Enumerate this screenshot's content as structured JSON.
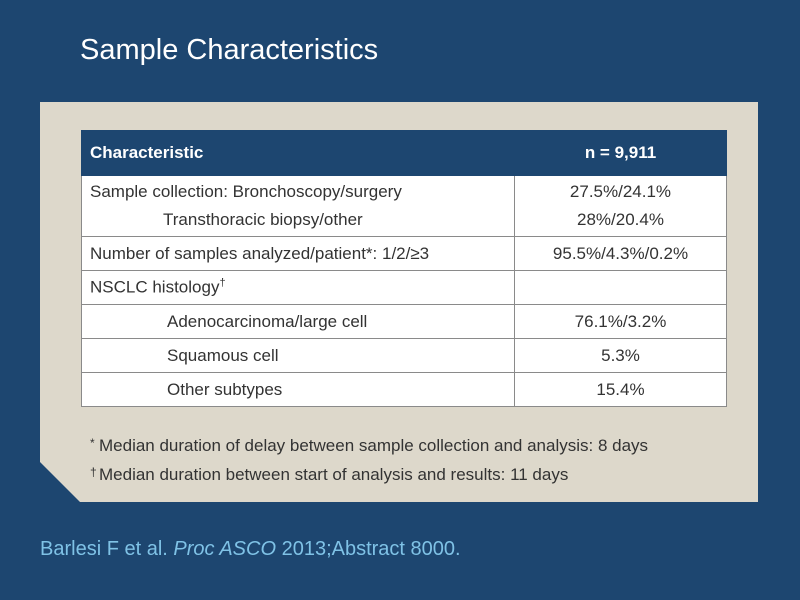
{
  "title": "Sample Characteristics",
  "table": {
    "header": {
      "characteristic": "Characteristic",
      "value": "n = 9,911"
    },
    "rows": {
      "sample_collection": {
        "label_line1": "Sample collection: Bronchoscopy/surgery",
        "label_line2": "Transthoracic biopsy/other",
        "value_line1": "27.5%/24.1%",
        "value_line2": "28%/20.4%"
      },
      "samples_analyzed": {
        "label": "Number of samples analyzed/patient*: 1/2/≥3",
        "value": "95.5%/4.3%/0.2%"
      },
      "histology": {
        "label": "NSCLC histology",
        "label_sup": "†",
        "value": ""
      },
      "adeno": {
        "label": "Adenocarcinoma/large cell",
        "value": "76.1%/3.2%"
      },
      "squamous": {
        "label": "Squamous cell",
        "value": "5.3%"
      },
      "other": {
        "label": "Other subtypes",
        "value": "15.4%"
      }
    }
  },
  "footnotes": [
    {
      "symbol": "*",
      "text": "Median duration of delay between sample collection and analysis: 8 days"
    },
    {
      "symbol": "†",
      "text": "Median duration between start of analysis and results: 11 days"
    }
  ],
  "citation": {
    "authors": "Barlesi F et al.",
    "journal": "Proc ASCO",
    "details": "2013;Abstract 8000."
  },
  "colors": {
    "background": "#1d4670",
    "panel": "#ddd8cb",
    "citation": "#7fc2e6"
  }
}
